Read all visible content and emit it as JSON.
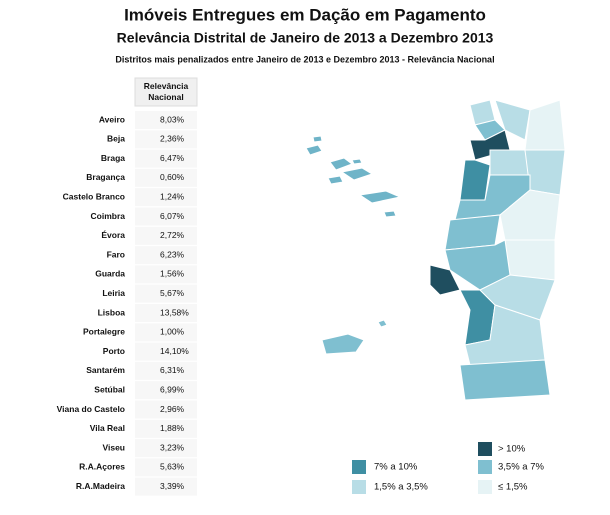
{
  "header": {
    "title": "Imóveis Entregues em Dação em Pagamento",
    "subtitle": "Relevância Distrital de Janeiro de 2013 a Dezembro 2013",
    "caption": "Distritos mais penalizados entre Janeiro de 2013 e Dezembro 2013 - Relevância Nacional"
  },
  "table": {
    "column_header": "Relevância Nacional",
    "rows": [
      [
        "Aveiro",
        "8,03%"
      ],
      [
        "Beja",
        "2,36%"
      ],
      [
        "Braga",
        "6,47%"
      ],
      [
        "Bragança",
        "0,60%"
      ],
      [
        "Castelo Branco",
        "1,24%"
      ],
      [
        "Coimbra",
        "6,07%"
      ],
      [
        "Évora",
        "2,72%"
      ],
      [
        "Faro",
        "6,23%"
      ],
      [
        "Guarda",
        "1,56%"
      ],
      [
        "Leiria",
        "5,67%"
      ],
      [
        "Lisboa",
        "13,58%"
      ],
      [
        "Portalegre",
        "1,00%"
      ],
      [
        "Porto",
        "14,10%"
      ],
      [
        "Santarém",
        "6,31%"
      ],
      [
        "Setúbal",
        "6,99%"
      ],
      [
        "Viana do Castelo",
        "2,96%"
      ],
      [
        "Vila Real",
        "1,88%"
      ],
      [
        "Viseu",
        "3,23%"
      ],
      [
        "R.A.Açores",
        "5,63%"
      ],
      [
        "R.A.Madeira",
        "3,39%"
      ]
    ]
  },
  "legend": {
    "items": [
      "> 10%",
      "7% a 10%",
      "3,5% a 7%",
      "1,5% a 3,5%",
      "≤ 1,5%"
    ]
  }
}
